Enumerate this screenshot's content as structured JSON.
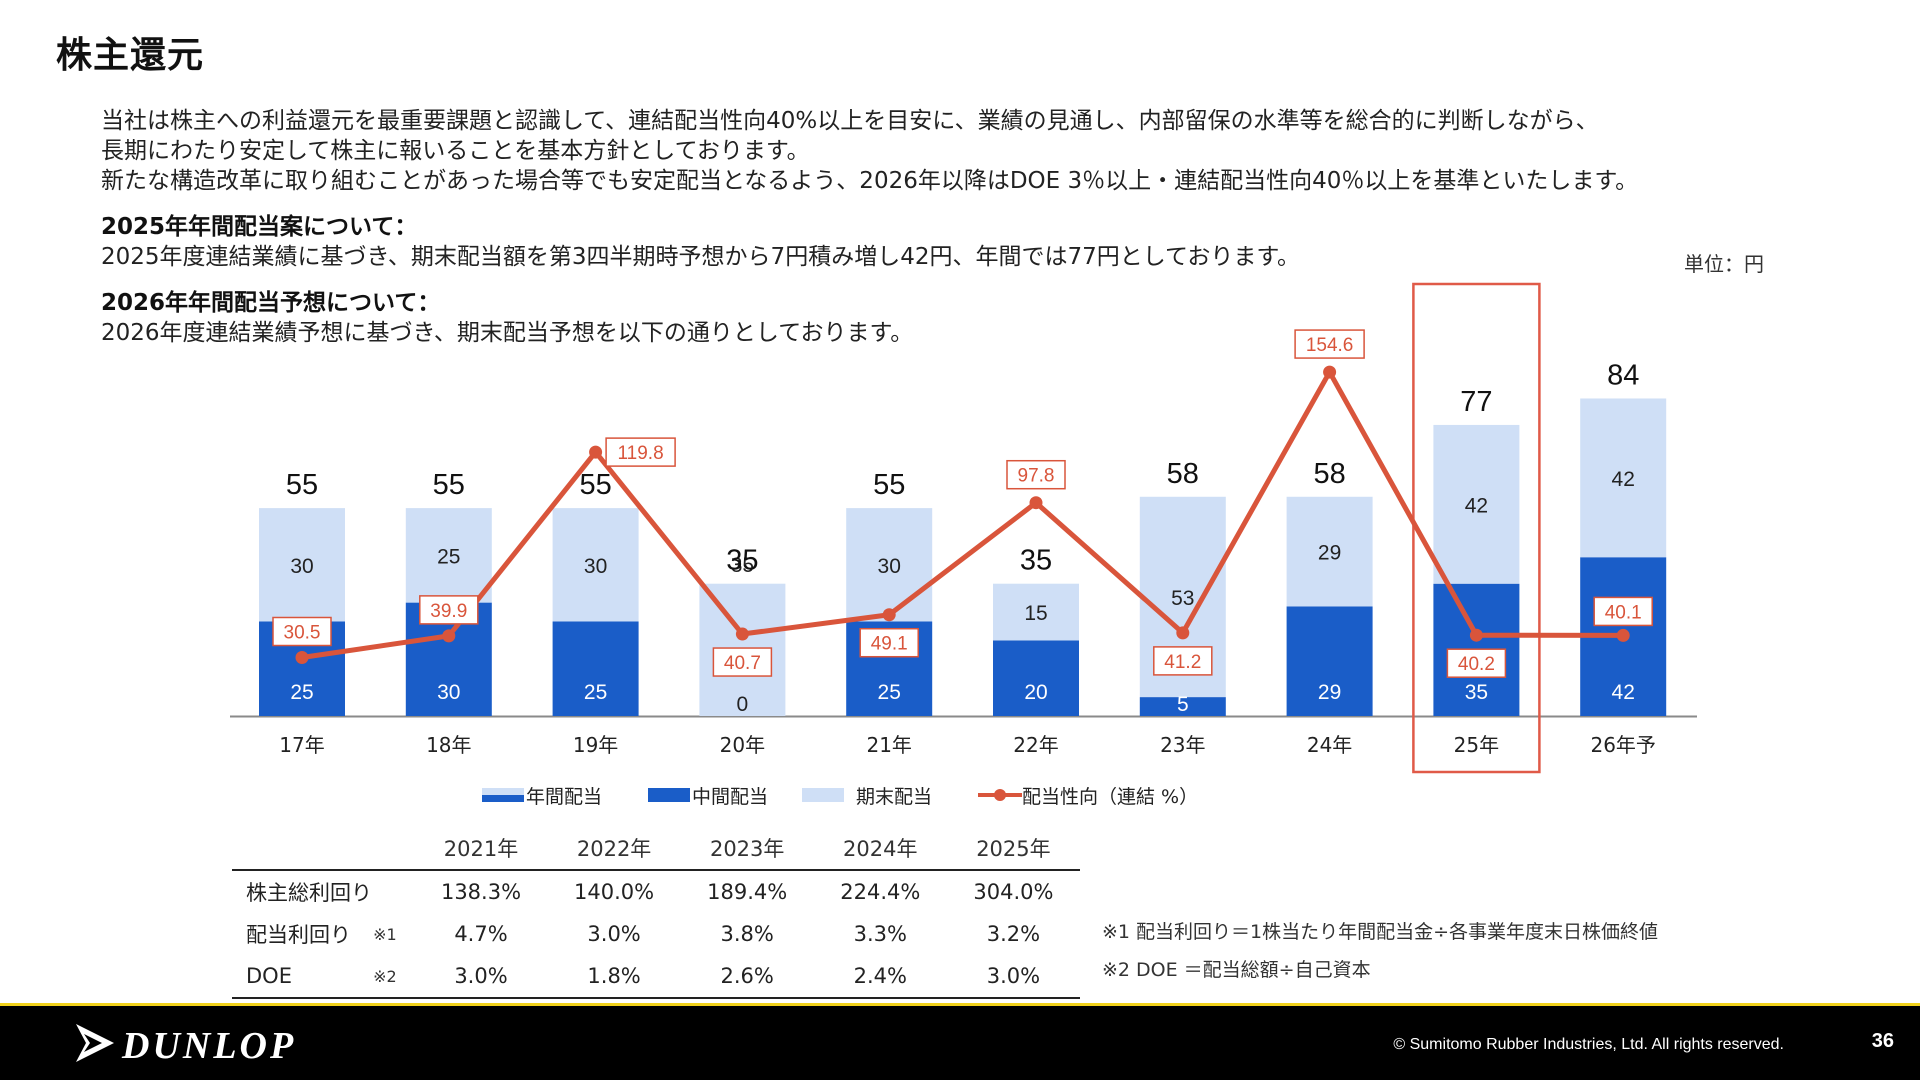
{
  "page_title": "株主還元",
  "intro": [
    "当社は株主への利益還元を最重要課題と認識して、連結配当性向40%以上を目安に、業績の見通し、内部留保の水準等を総合的に判断しながら、",
    "長期にわたり安定して株主に報いることを基本方針としております。",
    "新たな構造改革に取り組むことがあった場合等でも安定配当となるよう、2026年以降はDOE 3％以上・連結配当性向40％以上を基準といたします。"
  ],
  "section_2025": {
    "heading": "2025年年間配当案について：",
    "text": "2025年度連結業績に基づき、期末配当額を第3四半期時予想から7円積み増し42円、年間では77円としております。"
  },
  "section_2026": {
    "heading": "2026年年間配当予想について：",
    "text": "2026年度連結業績予想に基づき、期末配当予想を以下の通りとしております。"
  },
  "unit_label": "単位：円",
  "chart_data": {
    "type": "bar",
    "categories": [
      "17年",
      "18年",
      "19年",
      "20年",
      "21年",
      "22年",
      "23年",
      "24年",
      "25年",
      "26年予"
    ],
    "series": [
      {
        "name": "中間配当",
        "values": [
          25,
          30,
          25,
          0,
          25,
          20,
          5,
          29,
          35,
          42
        ]
      },
      {
        "name": "期末配当",
        "values": [
          30,
          25,
          30,
          35,
          30,
          15,
          53,
          29,
          42,
          42
        ]
      },
      {
        "name": "配当性向（連結 %）",
        "values": [
          30.5,
          39.9,
          119.8,
          40.7,
          49.1,
          97.8,
          41.2,
          154.6,
          40.2,
          40.1
        ]
      }
    ],
    "totals": [
      55,
      55,
      55,
      35,
      55,
      35,
      58,
      58,
      77,
      84
    ],
    "highlight_category": "25年",
    "colors": {
      "interim": "#1a5dc8",
      "final": "#cfdff6",
      "ratio": "#d9553b",
      "highlight": "#e05a48"
    }
  },
  "legend": {
    "annual": "年間配当",
    "interim": "中間配当",
    "final": "期末配当",
    "ratio": "配当性向（連結 %）"
  },
  "table": {
    "headers": [
      "2021年",
      "2022年",
      "2023年",
      "2024年",
      "2025年"
    ],
    "rows": [
      {
        "label": "株主総利回り",
        "note": "",
        "values": [
          "138.3%",
          "140.0%",
          "189.4%",
          "224.4%",
          "304.0%"
        ]
      },
      {
        "label": "配当利回り",
        "note": "※1",
        "values": [
          "4.7%",
          "3.0%",
          "3.8%",
          "3.3%",
          "3.2%"
        ]
      },
      {
        "label": "DOE",
        "note": "※2",
        "values": [
          "3.0%",
          "1.8%",
          "2.6%",
          "2.4%",
          "3.0%"
        ]
      }
    ]
  },
  "notes": [
    "※1 配当利回り＝1株当たり年間配当金÷各事業年度末日株価終値",
    "※2 DOE ＝配当総額÷自己資本"
  ],
  "footer": {
    "brand": "DUNLOP",
    "copyright": "© Sumitomo Rubber Industries, Ltd. All rights reserved.",
    "page_number": "36"
  }
}
